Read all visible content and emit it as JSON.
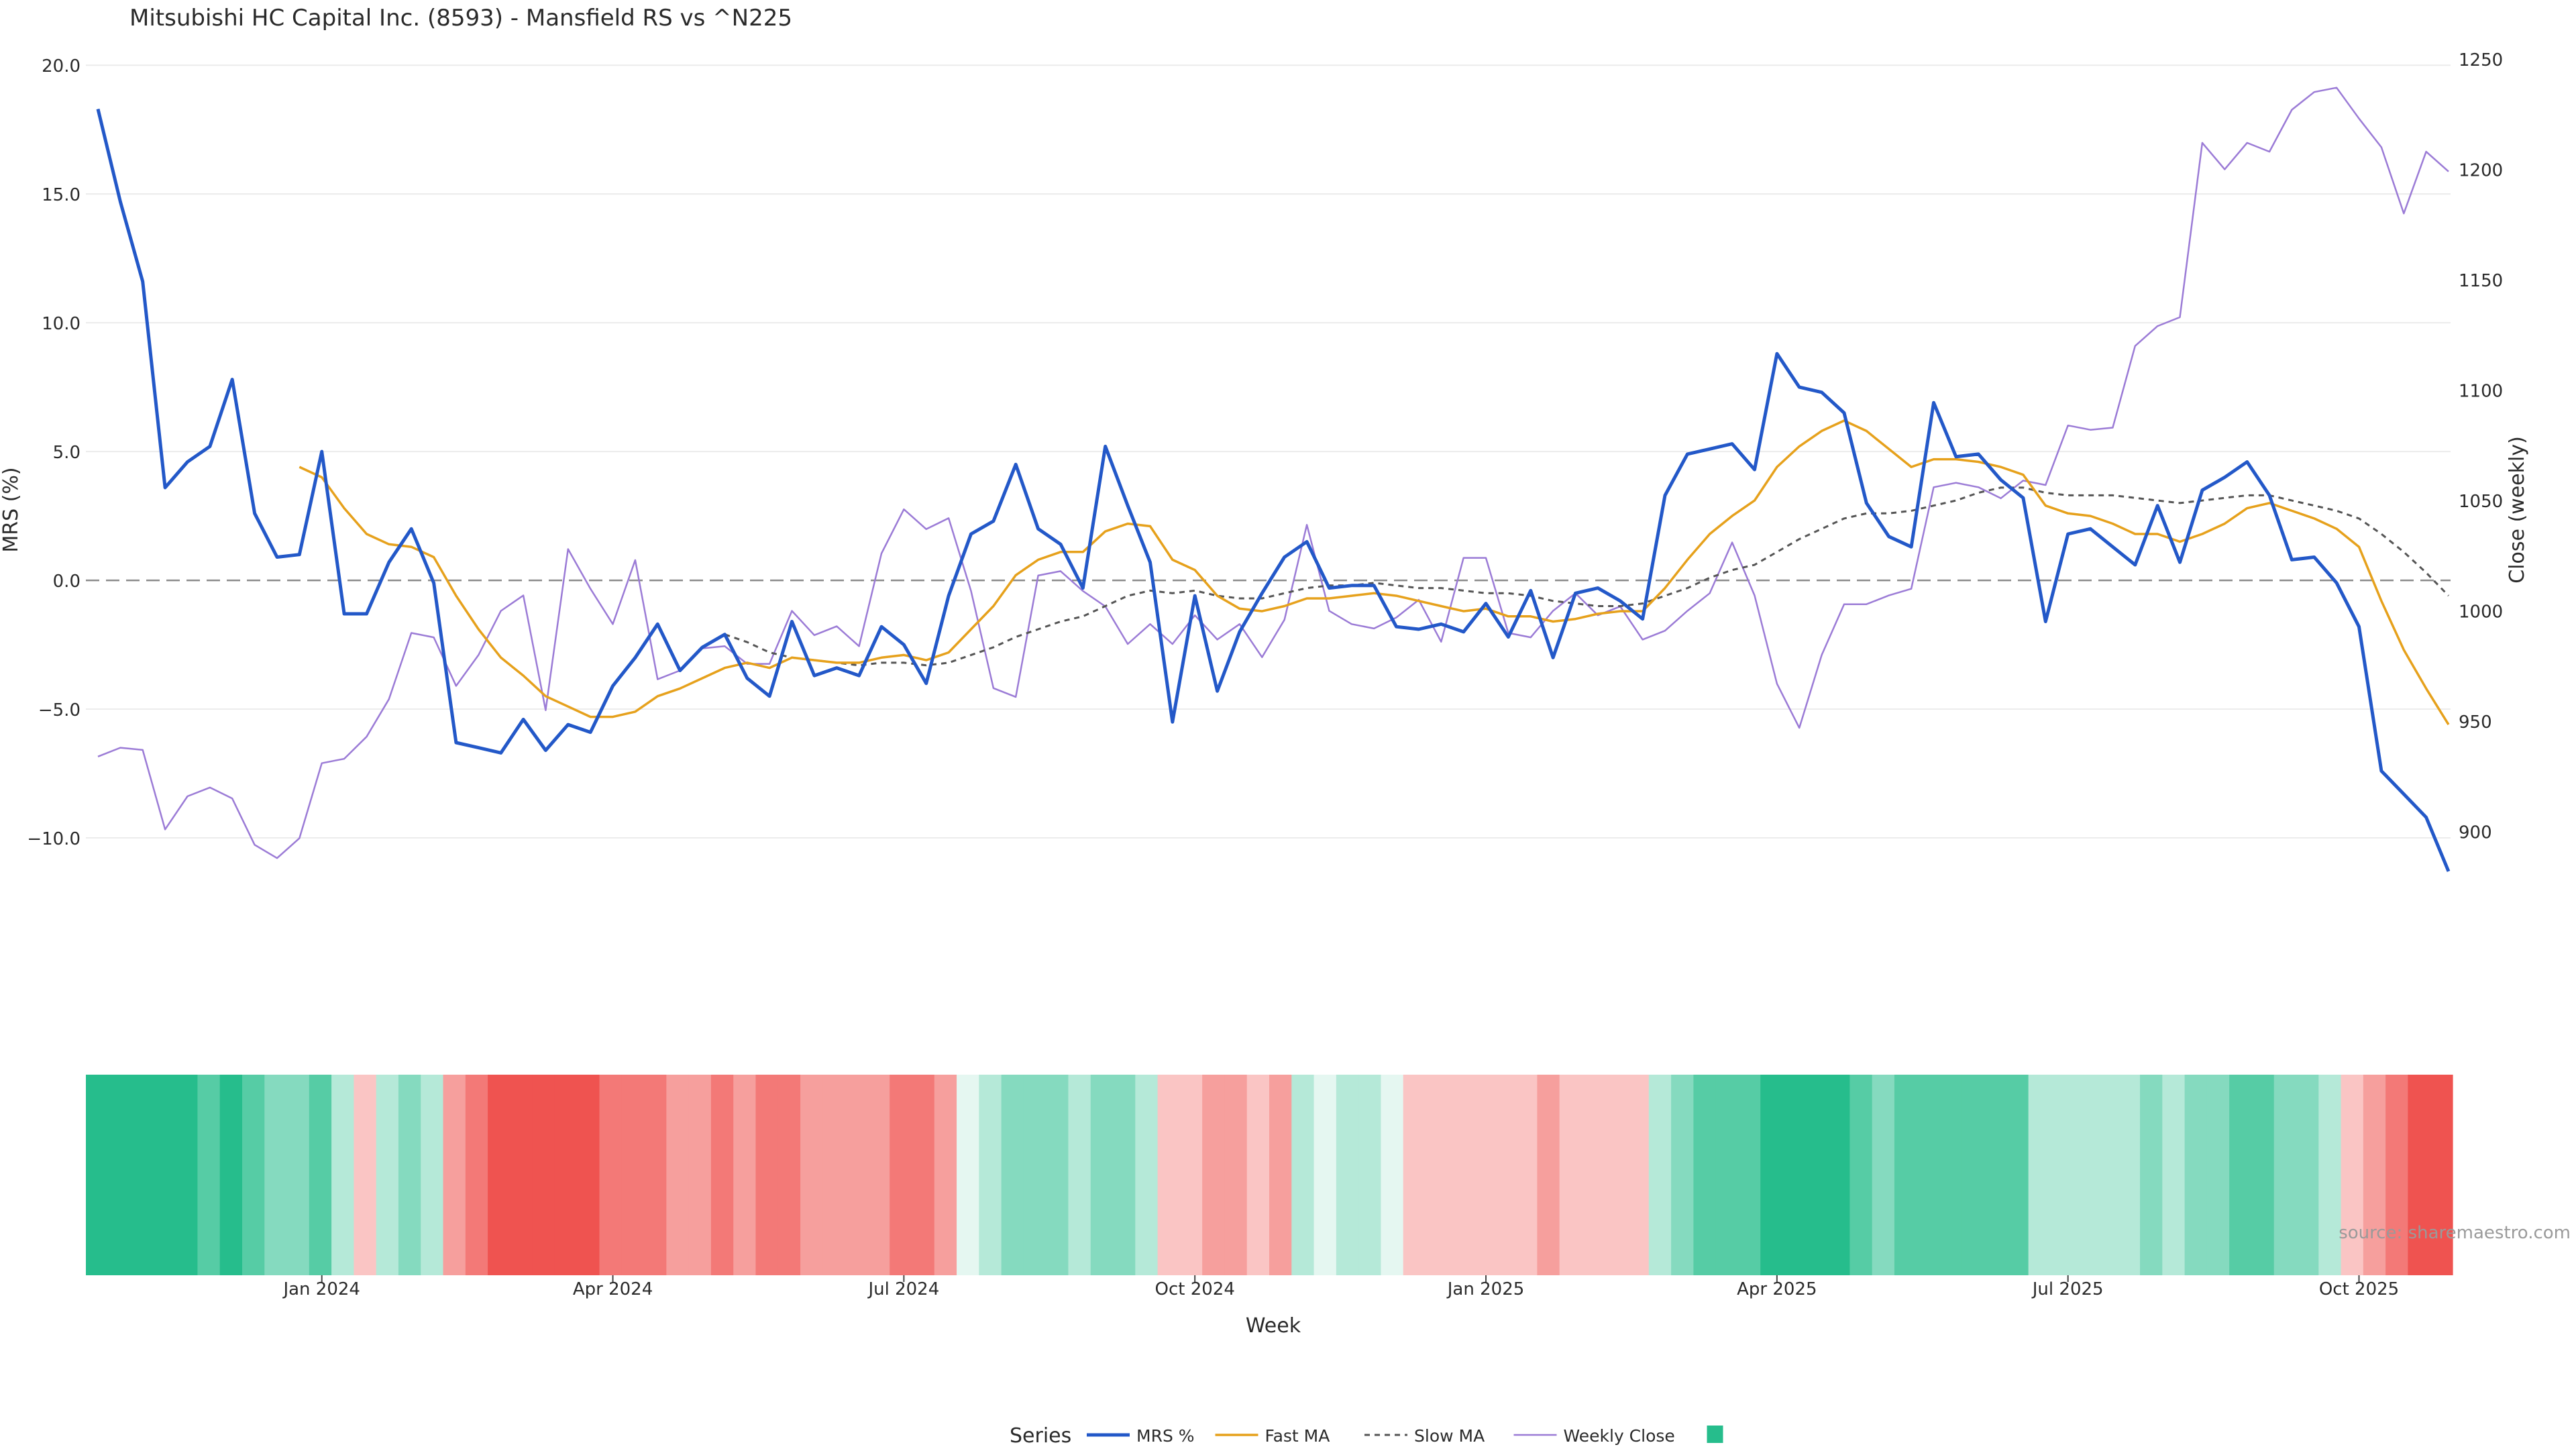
{
  "chart_data": {
    "type": "line",
    "title": "Mitsubishi HC Capital Inc. (8593) - Mansfield RS vs ^N225",
    "xlabel": "Week",
    "ylabel_left": "MRS (%)",
    "ylabel_right": "Close (weekly)",
    "source": "source: sharemaestro.com",
    "ylim_left": [
      -12.5,
      20.5
    ],
    "ylim_right": [
      868,
      1253
    ],
    "yticks_left": [
      {
        "v": 20.0,
        "label": "20.0"
      },
      {
        "v": 15.0,
        "label": "15.0"
      },
      {
        "v": 10.0,
        "label": "10.0"
      },
      {
        "v": 5.0,
        "label": "5.0"
      },
      {
        "v": 0.0,
        "label": "0.0"
      },
      {
        "v": -5.0,
        "label": "−5.0"
      },
      {
        "v": -10.0,
        "label": "−10.0"
      }
    ],
    "yticks_right": [
      {
        "v": 1250,
        "label": "1250"
      },
      {
        "v": 1200,
        "label": "1200"
      },
      {
        "v": 1150,
        "label": "1150"
      },
      {
        "v": 1100,
        "label": "1100"
      },
      {
        "v": 1050,
        "label": "1050"
      },
      {
        "v": 1000,
        "label": "1000"
      },
      {
        "v": 950,
        "label": "950"
      },
      {
        "v": 900,
        "label": "900"
      }
    ],
    "xticks": [
      {
        "i": 10,
        "label": "Jan 2024"
      },
      {
        "i": 23,
        "label": "Apr 2024"
      },
      {
        "i": 36,
        "label": "Jul 2024"
      },
      {
        "i": 49,
        "label": "Oct 2024"
      },
      {
        "i": 62,
        "label": "Jan 2025"
      },
      {
        "i": 75,
        "label": "Apr 2025"
      },
      {
        "i": 88,
        "label": "Jul 2025"
      },
      {
        "i": 101,
        "label": "Oct 2025"
      }
    ],
    "weeks": 106,
    "legend_title": "Series",
    "legend_placement": "bottom",
    "series": [
      {
        "name": "MRS %",
        "color": "#2358c8",
        "axis": "left",
        "values": [
          18.3,
          14.7,
          11.6,
          3.6,
          4.6,
          5.2,
          7.8,
          2.6,
          0.9,
          1.0,
          5.0,
          -1.3,
          -1.3,
          0.7,
          2.0,
          -0.1,
          -6.3,
          -6.5,
          -6.7,
          -5.4,
          -6.6,
          -5.6,
          -5.9,
          -4.1,
          -3.0,
          -1.7,
          -3.5,
          -2.6,
          -2.1,
          -3.8,
          -4.5,
          -1.6,
          -3.7,
          -3.4,
          -3.7,
          -1.8,
          -2.5,
          -4.0,
          -0.6,
          1.8,
          2.3,
          4.5,
          2.0,
          1.4,
          -0.3,
          5.2,
          2.9,
          0.7,
          -5.5,
          -0.6,
          -4.3,
          -2.0,
          -0.5,
          0.9,
          1.5,
          -0.3,
          -0.2,
          -0.2,
          -1.8,
          -1.9,
          -1.7,
          -2.0,
          -0.9,
          -2.2,
          -0.4,
          -3.0,
          -0.5,
          -0.3,
          -0.8,
          -1.5,
          3.3,
          4.9,
          5.1,
          5.3,
          4.3,
          8.8,
          7.5,
          7.3,
          6.5,
          3.0,
          1.7,
          1.3,
          6.9,
          4.8,
          4.9,
          3.9,
          3.2,
          -1.6,
          1.8,
          2.0,
          1.3,
          0.6,
          2.9,
          0.7,
          3.5,
          4.0,
          4.6,
          3.3,
          0.8,
          0.9,
          -0.1,
          -1.8,
          -7.4,
          -8.3,
          -9.2,
          -11.3
        ]
      },
      {
        "name": "Fast MA",
        "color": "#e6a11c",
        "axis": "left",
        "values": [
          null,
          null,
          null,
          null,
          null,
          null,
          null,
          null,
          null,
          4.4,
          4.0,
          2.8,
          1.8,
          1.4,
          1.3,
          0.9,
          -0.6,
          -1.9,
          -3.0,
          -3.7,
          -4.5,
          -4.9,
          -5.3,
          -5.3,
          -5.1,
          -4.5,
          -4.2,
          -3.8,
          -3.4,
          -3.2,
          -3.4,
          -3.0,
          -3.1,
          -3.2,
          -3.2,
          -3.0,
          -2.9,
          -3.1,
          -2.8,
          -1.9,
          -1.0,
          0.2,
          0.8,
          1.1,
          1.1,
          1.9,
          2.2,
          2.1,
          0.8,
          0.4,
          -0.6,
          -1.1,
          -1.2,
          -1.0,
          -0.7,
          -0.7,
          -0.6,
          -0.5,
          -0.6,
          -0.8,
          -1.0,
          -1.2,
          -1.1,
          -1.4,
          -1.4,
          -1.6,
          -1.5,
          -1.3,
          -1.2,
          -1.2,
          -0.3,
          0.8,
          1.8,
          2.5,
          3.1,
          4.4,
          5.2,
          5.8,
          6.2,
          5.8,
          5.1,
          4.4,
          4.7,
          4.7,
          4.6,
          4.4,
          4.1,
          2.9,
          2.6,
          2.5,
          2.2,
          1.8,
          1.8,
          1.5,
          1.8,
          2.2,
          2.8,
          3.0,
          2.7,
          2.4,
          2.0,
          1.3,
          -0.8,
          -2.7,
          -4.2,
          -5.6
        ]
      },
      {
        "name": "Slow MA",
        "color": "#555555",
        "axis": "left",
        "values": [
          null,
          null,
          null,
          null,
          null,
          null,
          null,
          null,
          null,
          null,
          null,
          null,
          null,
          null,
          null,
          null,
          null,
          null,
          null,
          null,
          null,
          null,
          null,
          null,
          null,
          null,
          null,
          null,
          -2.1,
          -2.4,
          -2.8,
          -3.0,
          -3.1,
          -3.2,
          -3.3,
          -3.2,
          -3.2,
          -3.3,
          -3.2,
          -2.9,
          -2.6,
          -2.2,
          -1.9,
          -1.6,
          -1.4,
          -1.0,
          -0.6,
          -0.4,
          -0.5,
          -0.4,
          -0.6,
          -0.7,
          -0.7,
          -0.5,
          -0.3,
          -0.2,
          -0.2,
          -0.1,
          -0.2,
          -0.3,
          -0.3,
          -0.4,
          -0.5,
          -0.5,
          -0.6,
          -0.8,
          -0.9,
          -1.0,
          -1.0,
          -0.9,
          -0.6,
          -0.3,
          0.1,
          0.4,
          0.6,
          1.1,
          1.6,
          2.0,
          2.4,
          2.6,
          2.6,
          2.7,
          2.9,
          3.1,
          3.4,
          3.6,
          3.6,
          3.4,
          3.3,
          3.3,
          3.3,
          3.2,
          3.1,
          3.0,
          3.1,
          3.2,
          3.3,
          3.3,
          3.1,
          2.9,
          2.7,
          2.4,
          1.8,
          1.1,
          0.3,
          -0.6
        ]
      },
      {
        "name": "Weekly Close",
        "color": "#9b7bd6",
        "axis": "right",
        "values": [
          934,
          938,
          937,
          901,
          916,
          920,
          915,
          894,
          888,
          897,
          931,
          933,
          943,
          960,
          990,
          988,
          966,
          980,
          1000,
          1007,
          955,
          1028,
          1010,
          994,
          1023,
          969,
          973,
          983,
          984,
          976,
          976,
          1000,
          989,
          993,
          984,
          1026,
          1046,
          1037,
          1042,
          1009,
          965,
          961,
          1016,
          1018,
          1009,
          1002,
          985,
          994,
          985,
          998,
          987,
          994,
          979,
          996,
          1039,
          1000,
          994,
          992,
          997,
          1005,
          986,
          1024,
          1024,
          990,
          988,
          1000,
          1008,
          998,
          1002,
          987,
          991,
          1000,
          1008,
          1031,
          1007,
          967,
          947,
          980,
          1003,
          1003,
          1007,
          1010,
          1056,
          1058,
          1056,
          1051,
          1059,
          1057,
          1084,
          1082,
          1083,
          1120,
          1129,
          1133,
          1212,
          1200,
          1212,
          1208,
          1227,
          1235,
          1237,
          1223,
          1210,
          1180,
          1208,
          1199
        ]
      }
    ],
    "heatmap": {
      "palette_green": "#26bd8c",
      "palette_red": "#ef5350",
      "values": [
        5,
        5,
        5,
        5,
        4,
        3,
        4,
        3,
        2,
        2,
        3,
        1,
        -1,
        1,
        2,
        1,
        -2,
        -3,
        -4,
        -4,
        -4,
        -4,
        -5,
        -3,
        -3,
        -3,
        -2,
        -2,
        -3,
        -2,
        -3,
        -3,
        -2,
        -2,
        -2,
        -2,
        -3,
        -3,
        -2,
        0,
        1,
        2,
        2,
        2,
        1,
        2,
        2,
        1,
        -1,
        -1,
        -2,
        -2,
        -1,
        -2,
        1,
        0,
        1,
        1,
        0,
        -1,
        -1,
        -1,
        -1,
        -1,
        -1,
        -2,
        -1,
        -1,
        -1,
        -1,
        1,
        2,
        3,
        3,
        3,
        4,
        4,
        4,
        4,
        3,
        2,
        3,
        3,
        3,
        3,
        3,
        3,
        1,
        1,
        1,
        1,
        1,
        2,
        1,
        2,
        2,
        3,
        3,
        2,
        2,
        1,
        -1,
        -2,
        -3,
        -4,
        -4
      ]
    }
  }
}
